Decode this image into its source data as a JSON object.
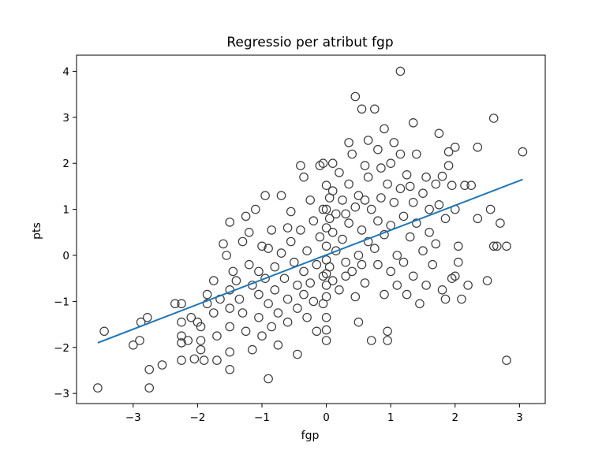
{
  "chart_data": {
    "type": "scatter",
    "title": "Regressio per atribut fgp",
    "xlabel": "fgp",
    "ylabel": "pts",
    "xlim": [
      -3.88,
      3.4
    ],
    "ylim": [
      -3.22,
      4.35
    ],
    "xticks": [
      -3,
      -2,
      -1,
      0,
      1,
      2,
      3
    ],
    "yticks": [
      -3,
      -2,
      -1,
      0,
      1,
      2,
      3,
      4
    ],
    "xtick_labels": [
      "−3",
      "−2",
      "−1",
      "0",
      "1",
      "2",
      "3"
    ],
    "ytick_labels": [
      "−3",
      "−2",
      "−1",
      "0",
      "1",
      "2",
      "3",
      "4"
    ],
    "grid": false,
    "marker_color": "#3a3a3a",
    "line_color": "#1f77b4",
    "regression_line": {
      "x": [
        -3.55,
        3.05
      ],
      "y": [
        -1.9,
        1.65
      ]
    },
    "points": [
      [
        -3.55,
        -2.88
      ],
      [
        -3.45,
        -1.65
      ],
      [
        -3.0,
        -1.95
      ],
      [
        -2.9,
        -1.85
      ],
      [
        -2.88,
        -1.45
      ],
      [
        -2.78,
        -1.35
      ],
      [
        -2.75,
        -2.48
      ],
      [
        -2.75,
        -2.88
      ],
      [
        -2.55,
        -2.38
      ],
      [
        -2.35,
        -1.05
      ],
      [
        -2.25,
        -1.45
      ],
      [
        -2.25,
        -1.75
      ],
      [
        -2.25,
        -1.9
      ],
      [
        -2.25,
        -2.28
      ],
      [
        -2.25,
        -1.05
      ],
      [
        -2.15,
        -1.85
      ],
      [
        -2.1,
        -1.35
      ],
      [
        -2.05,
        -2.25
      ],
      [
        -2.0,
        -1.45
      ],
      [
        -1.95,
        -1.55
      ],
      [
        -1.95,
        -1.85
      ],
      [
        -1.95,
        -2.05
      ],
      [
        -1.9,
        -2.28
      ],
      [
        -1.85,
        -1.05
      ],
      [
        -1.85,
        -0.85
      ],
      [
        -1.75,
        -0.55
      ],
      [
        -1.75,
        -1.25
      ],
      [
        -1.7,
        -1.75
      ],
      [
        -1.7,
        -2.28
      ],
      [
        -1.65,
        -0.95
      ],
      [
        -1.55,
        0.0
      ],
      [
        -1.5,
        -0.75
      ],
      [
        -1.5,
        -1.15
      ],
      [
        -1.5,
        -1.55
      ],
      [
        -1.5,
        -2.1
      ],
      [
        -1.5,
        -2.48
      ],
      [
        -1.5,
        0.72
      ],
      [
        -1.45,
        -0.35
      ],
      [
        -1.4,
        -0.55
      ],
      [
        -1.35,
        -0.95
      ],
      [
        -1.3,
        0.3
      ],
      [
        -1.3,
        -1.25
      ],
      [
        -1.25,
        -1.65
      ],
      [
        -1.25,
        0.85
      ],
      [
        -1.2,
        -0.2
      ],
      [
        -1.15,
        -0.65
      ],
      [
        -1.15,
        -2.05
      ],
      [
        -1.1,
        1.0
      ],
      [
        -1.05,
        -0.35
      ],
      [
        -1.05,
        -0.85
      ],
      [
        -1.05,
        -1.35
      ],
      [
        -1.0,
        0.2
      ],
      [
        -1.0,
        -1.75
      ],
      [
        -0.95,
        1.3
      ],
      [
        -0.95,
        -0.5
      ],
      [
        -0.9,
        -1.05
      ],
      [
        -0.9,
        -2.68
      ],
      [
        -0.85,
        0.55
      ],
      [
        -0.85,
        -1.55
      ],
      [
        -0.8,
        -0.25
      ],
      [
        -0.8,
        -0.75
      ],
      [
        -0.75,
        -1.25
      ],
      [
        -0.75,
        -1.95
      ],
      [
        -0.7,
        1.3
      ],
      [
        -0.7,
        0.05
      ],
      [
        -0.65,
        -0.5
      ],
      [
        -0.6,
        -0.95
      ],
      [
        -0.6,
        -1.45
      ],
      [
        -0.55,
        0.95
      ],
      [
        -0.55,
        0.3
      ],
      [
        -0.5,
        -0.15
      ],
      [
        -0.45,
        -0.65
      ],
      [
        -0.45,
        -1.15
      ],
      [
        -0.45,
        -2.15
      ],
      [
        -0.4,
        1.95
      ],
      [
        -0.4,
        0.55
      ],
      [
        -0.35,
        -0.35
      ],
      [
        -0.35,
        -0.85
      ],
      [
        -0.35,
        1.7
      ],
      [
        -0.3,
        0.1
      ],
      [
        -0.3,
        -1.35
      ],
      [
        -0.25,
        1.2
      ],
      [
        -0.25,
        -0.6
      ],
      [
        -0.2,
        0.75
      ],
      [
        -0.2,
        -1.0
      ],
      [
        -0.15,
        -0.2
      ],
      [
        -0.15,
        -1.65
      ],
      [
        -0.1,
        1.95
      ],
      [
        -0.1,
        0.4
      ],
      [
        -0.05,
        -0.45
      ],
      [
        -0.05,
        2.0
      ],
      [
        -0.05,
        1.0
      ],
      [
        -0.05,
        -1.05
      ],
      [
        0.0,
        1.52
      ],
      [
        0.0,
        1.0
      ],
      [
        0.0,
        0.6
      ],
      [
        0.0,
        0.2
      ],
      [
        0.0,
        -0.1
      ],
      [
        0.0,
        -0.4
      ],
      [
        0.0,
        -0.65
      ],
      [
        0.0,
        -0.9
      ],
      [
        0.0,
        -1.35
      ],
      [
        0.0,
        -1.62
      ],
      [
        0.0,
        -1.85
      ],
      [
        0.05,
        1.25
      ],
      [
        0.05,
        0.8
      ],
      [
        0.05,
        -0.25
      ],
      [
        0.1,
        2.0
      ],
      [
        0.1,
        1.4
      ],
      [
        0.1,
        0.5
      ],
      [
        0.1,
        -0.55
      ],
      [
        0.15,
        0.9
      ],
      [
        0.15,
        0.1
      ],
      [
        0.2,
        -0.75
      ],
      [
        0.2,
        1.8
      ],
      [
        0.25,
        1.2
      ],
      [
        0.25,
        0.35
      ],
      [
        0.3,
        -0.15
      ],
      [
        0.3,
        -0.45
      ],
      [
        0.35,
        2.45
      ],
      [
        0.35,
        1.55
      ],
      [
        0.35,
        0.7
      ],
      [
        0.4,
        2.2
      ],
      [
        0.4,
        -0.35
      ],
      [
        0.45,
        3.45
      ],
      [
        0.45,
        1.05
      ],
      [
        0.45,
        -0.9
      ],
      [
        0.5,
        1.3
      ],
      [
        0.5,
        0.0
      ],
      [
        0.5,
        -1.45
      ],
      [
        0.55,
        3.18
      ],
      [
        0.55,
        0.55
      ],
      [
        0.6,
        1.95
      ],
      [
        0.6,
        -0.6
      ],
      [
        0.65,
        2.5
      ],
      [
        0.65,
        1.7
      ],
      [
        0.65,
        0.3
      ],
      [
        0.7,
        1.0
      ],
      [
        0.7,
        -1.85
      ],
      [
        0.75,
        3.18
      ],
      [
        0.75,
        0.15
      ],
      [
        0.8,
        2.3
      ],
      [
        0.8,
        0.75
      ],
      [
        0.8,
        -0.2
      ],
      [
        0.85,
        1.9
      ],
      [
        0.85,
        1.25
      ],
      [
        0.9,
        2.75
      ],
      [
        0.9,
        0.45
      ],
      [
        0.9,
        -0.85
      ],
      [
        0.95,
        1.55
      ],
      [
        0.95,
        -1.65
      ],
      [
        0.95,
        -1.85
      ],
      [
        1.0,
        2.0
      ],
      [
        1.0,
        0.65
      ],
      [
        1.0,
        -0.35
      ],
      [
        1.05,
        2.45
      ],
      [
        1.05,
        1.15
      ],
      [
        1.1,
        0.0
      ],
      [
        1.1,
        -0.65
      ],
      [
        1.15,
        4.0
      ],
      [
        1.15,
        2.2
      ],
      [
        1.15,
        1.45
      ],
      [
        1.2,
        0.85
      ],
      [
        1.2,
        -0.15
      ],
      [
        1.25,
        1.75
      ],
      [
        1.25,
        -0.85
      ],
      [
        1.3,
        0.4
      ],
      [
        1.35,
        2.88
      ],
      [
        1.35,
        1.15
      ],
      [
        1.35,
        -0.45
      ],
      [
        1.4,
        2.2
      ],
      [
        1.4,
        0.7
      ],
      [
        1.45,
        -1.05
      ],
      [
        1.5,
        1.35
      ],
      [
        1.5,
        0.1
      ],
      [
        1.55,
        1.7
      ],
      [
        1.55,
        -0.65
      ],
      [
        1.6,
        0.5
      ],
      [
        1.6,
        1.0
      ],
      [
        1.65,
        -0.2
      ],
      [
        1.7,
        1.55
      ],
      [
        1.7,
        0.25
      ],
      [
        1.75,
        2.65
      ],
      [
        1.75,
        1.1
      ],
      [
        1.8,
        1.72
      ],
      [
        1.8,
        -0.75
      ],
      [
        1.85,
        0.8
      ],
      [
        1.85,
        -0.95
      ],
      [
        1.9,
        2.25
      ],
      [
        1.9,
        1.95
      ],
      [
        1.95,
        1.52
      ],
      [
        1.95,
        -0.5
      ],
      [
        2.0,
        2.35
      ],
      [
        2.0,
        1.0
      ],
      [
        2.0,
        -0.45
      ],
      [
        2.05,
        0.2
      ],
      [
        2.05,
        -0.15
      ],
      [
        2.1,
        -0.95
      ],
      [
        2.15,
        1.52
      ],
      [
        2.2,
        -0.65
      ],
      [
        2.25,
        1.52
      ],
      [
        2.35,
        2.35
      ],
      [
        2.35,
        0.8
      ],
      [
        2.5,
        -0.55
      ],
      [
        2.55,
        1.0
      ],
      [
        2.6,
        2.98
      ],
      [
        2.6,
        0.2
      ],
      [
        2.65,
        0.2
      ],
      [
        2.7,
        0.7
      ],
      [
        2.8,
        0.2
      ],
      [
        2.8,
        -2.28
      ],
      [
        3.05,
        2.25
      ],
      [
        -1.6,
        0.25
      ],
      [
        -1.2,
        0.5
      ],
      [
        -0.6,
        0.6
      ],
      [
        0.3,
        0.9
      ],
      [
        0.6,
        1.2
      ],
      [
        1.3,
        1.5
      ],
      [
        -0.9,
        0.15
      ],
      [
        0.55,
        -0.2
      ]
    ]
  }
}
